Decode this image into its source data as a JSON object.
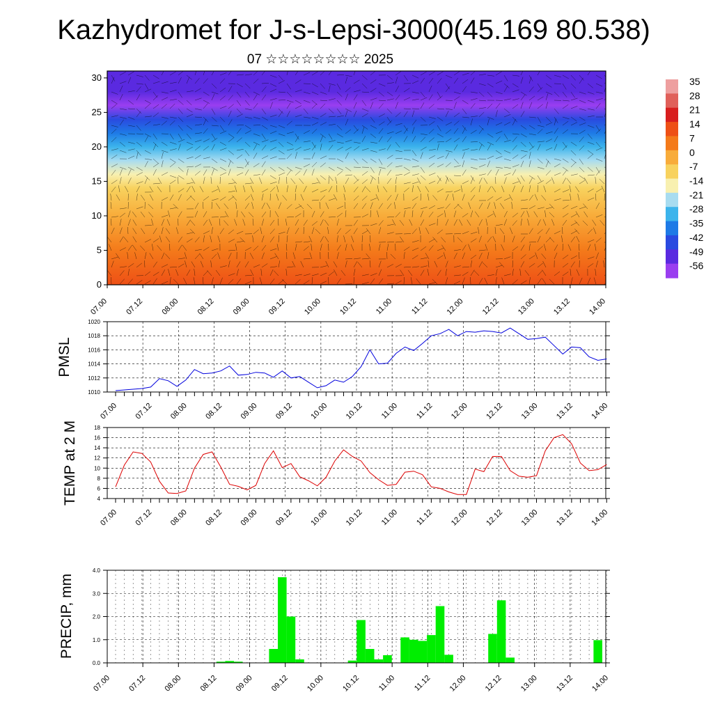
{
  "header": {
    "title": "Kazhydromet for J-s-Lepsi-3000(45.169 80.538)",
    "subtitle": "07 ☆☆☆☆☆☆☆☆ 2025"
  },
  "time_ticks": [
    "07.00",
    "07.12",
    "08.00",
    "08.12",
    "09.00",
    "09.12",
    "10.00",
    "10.12",
    "11.00",
    "11.12",
    "12.00",
    "12.12",
    "13.00",
    "13.12",
    "14.00"
  ],
  "chart_data": [
    {
      "type": "heatmap",
      "yticks": [
        0,
        5,
        10,
        15,
        20,
        25,
        30
      ],
      "ylim": [
        0,
        31
      ],
      "xticks": [
        "07.00",
        "07.12",
        "08.00",
        "08.12",
        "09.00",
        "09.12",
        "10.00",
        "10.12",
        "11.00",
        "11.12",
        "12.00",
        "12.12",
        "13.00",
        "13.12",
        "14.00"
      ],
      "colorbar": {
        "labels": [
          "35",
          "28",
          "21",
          "14",
          "7",
          "0",
          "-7",
          "-14",
          "-21",
          "-28",
          "-35",
          "-42",
          "-49",
          "-56"
        ],
        "colors": [
          "#ee9f9f",
          "#e0605a",
          "#d81e1e",
          "#ee5016",
          "#f47a1a",
          "#f8ac3a",
          "#f8d25e",
          "#f8f0b0",
          "#a8dcf0",
          "#3cb4ec",
          "#1e7ae6",
          "#2a4ae0",
          "#5a2ae0",
          "#9a3ef0"
        ]
      },
      "temperature_profile": {
        "height_levels": [
          0,
          5,
          10,
          14,
          16,
          18,
          20,
          22,
          24,
          26,
          28,
          31
        ],
        "temperature": [
          12,
          6,
          0,
          -8,
          -14,
          -20,
          -28,
          -35,
          -45,
          -56,
          -52,
          -50
        ]
      }
    },
    {
      "type": "line",
      "ylabel": "PMSL",
      "ylim": [
        1010,
        1020
      ],
      "yticks": [
        1010,
        1012,
        1014,
        1016,
        1018,
        1020
      ],
      "color": "#0000dd",
      "x_step_hours": 3,
      "values": [
        1010.2,
        1010.3,
        1010.4,
        1010.5,
        1010.7,
        1011.9,
        1011.6,
        1010.8,
        1011.7,
        1013.2,
        1012.6,
        1012.7,
        1013.0,
        1013.7,
        1012.4,
        1012.5,
        1012.8,
        1012.7,
        1012.1,
        1013.0,
        1012.0,
        1012.2,
        1011.4,
        1010.6,
        1010.9,
        1011.7,
        1011.4,
        1012.2,
        1013.6,
        1016.0,
        1014.0,
        1014.1,
        1015.5,
        1016.4,
        1015.9,
        1016.9,
        1018.0,
        1018.3,
        1018.9,
        1018.0,
        1018.6,
        1018.5,
        1018.7,
        1018.6,
        1018.4,
        1019.1,
        1018.3,
        1017.5,
        1017.6,
        1017.8,
        1016.6,
        1015.4,
        1016.4,
        1016.3,
        1015.0,
        1014.5,
        1014.7
      ]
    },
    {
      "type": "line",
      "ylabel": "TEMP at 2 M",
      "ylim": [
        4,
        18
      ],
      "yticks": [
        4,
        6,
        8,
        10,
        12,
        14,
        16,
        18
      ],
      "color": "#dd0000",
      "x_step_hours": 3,
      "values": [
        6.3,
        10.6,
        13.2,
        12.9,
        11.2,
        7.4,
        5.1,
        5.0,
        5.5,
        10.0,
        12.7,
        13.2,
        10.2,
        6.8,
        6.4,
        5.7,
        6.6,
        10.9,
        13.4,
        10.1,
        10.9,
        8.3,
        7.5,
        6.5,
        8.2,
        11.4,
        13.6,
        12.3,
        11.4,
        9.1,
        7.7,
        6.6,
        6.8,
        9.2,
        9.4,
        8.7,
        6.3,
        6.0,
        5.3,
        4.8,
        4.8,
        9.8,
        9.3,
        12.3,
        12.3,
        9.5,
        8.4,
        8.2,
        8.5,
        13.4,
        16.0,
        16.6,
        14.8,
        11.0,
        9.5,
        9.7,
        10.7
      ]
    },
    {
      "type": "bar",
      "ylabel": "PRECIP, mm",
      "ylim": [
        0,
        4.0
      ],
      "yticks": [
        "0.0",
        "1.0",
        "2.0",
        "3.0",
        "4.0"
      ],
      "color": "#00ee00",
      "x_step_hours": 3,
      "values": [
        0,
        0,
        0,
        0,
        0,
        0,
        0,
        0,
        0,
        0,
        0,
        0,
        0.05,
        0.08,
        0.05,
        0,
        0,
        0,
        0.6,
        3.7,
        2.0,
        0.15,
        0,
        0,
        0,
        0,
        0,
        0.1,
        1.85,
        0.6,
        0.15,
        0.33,
        0,
        1.1,
        1.0,
        0.95,
        1.2,
        2.45,
        0.35,
        0,
        0,
        0,
        0,
        1.25,
        2.7,
        0.23,
        0,
        0,
        0,
        0,
        0,
        0,
        0,
        0,
        0,
        0.98,
        0
      ]
    }
  ]
}
